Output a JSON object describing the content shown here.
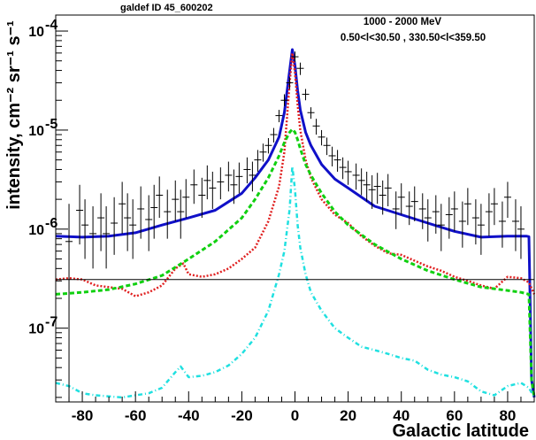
{
  "chart_data": {
    "type": "line",
    "title": "galdef ID 45_600202",
    "annotations": [
      "1000 -  2000 MeV",
      "0.50<l<30.50 , 330.50<l<359.50"
    ],
    "xlabel": "Galactic latitude",
    "ylabel": "intensity, cm⁻² sr⁻¹ s⁻¹",
    "xlim": [
      -90,
      90
    ],
    "ylim": [
      1.8e-08,
      0.000145
    ],
    "yscale": "log",
    "x_ticks": [
      "-80",
      "-60",
      "-40",
      "-20",
      "0",
      "20",
      "40",
      "60",
      "80"
    ],
    "y_ticks": [
      {
        "mantissa": "10",
        "exp": "-7",
        "value": 1e-07
      },
      {
        "mantissa": "10",
        "exp": "-6",
        "value": 1e-06
      },
      {
        "mantissa": "10",
        "exp": "-5",
        "value": 1e-05
      },
      {
        "mantissa": "10",
        "exp": "-4",
        "value": 0.0001
      }
    ],
    "grid": false,
    "series": [
      {
        "style": "solid",
        "color": "#1010c8",
        "x": [
          -90,
          -80,
          -70,
          -60,
          -50,
          -40,
          -30,
          -20,
          -15,
          -10,
          -6,
          -4,
          -2,
          -1,
          0,
          1,
          2,
          4,
          6,
          10,
          15,
          20,
          30,
          40,
          50,
          60,
          70,
          80,
          87,
          88,
          89,
          90
        ],
        "y": [
          8.5e-07,
          8.3e-07,
          8.5e-07,
          9.2e-07,
          1.1e-06,
          1.3e-06,
          1.55e-06,
          2.3e-06,
          3.3e-06,
          5e-06,
          8.5e-06,
          1.5e-05,
          4e-05,
          6.5e-05,
          4.5e-05,
          2.5e-05,
          1.6e-05,
          9.5e-06,
          7e-06,
          4.5e-06,
          3.2e-06,
          2.6e-06,
          1.7e-06,
          1.4e-06,
          1.15e-06,
          9.5e-07,
          8.3e-07,
          8.5e-07,
          8.5e-07,
          8.4e-07,
          3e-08,
          2e-08
        ]
      },
      {
        "style": "dotted",
        "color": "#e02020",
        "x": [
          -90,
          -85,
          -80,
          -75,
          -70,
          -65,
          -60,
          -55,
          -50,
          -45,
          -42,
          -40,
          -35,
          -30,
          -25,
          -20,
          -15,
          -10,
          -6,
          -4,
          -2,
          -1,
          0,
          1,
          2,
          4,
          6,
          10,
          15,
          20,
          25,
          30,
          35,
          40,
          45,
          50,
          55,
          60,
          65,
          70,
          75,
          80,
          85,
          88,
          90
        ],
        "y": [
          3.1e-07,
          3.2e-07,
          3.1e-07,
          2.7e-07,
          2.6e-07,
          2.5e-07,
          2.1e-07,
          2.3e-07,
          2.7e-07,
          4e-07,
          4.5e-07,
          3.5e-07,
          3.3e-07,
          3.5e-07,
          4e-07,
          5e-07,
          6.5e-07,
          1.2e-06,
          2.7e-06,
          6e-06,
          3e-05,
          6e-05,
          3.8e-05,
          1.8e-05,
          1e-05,
          5e-06,
          3.3e-06,
          2e-06,
          1.4e-06,
          1.15e-06,
          8.5e-07,
          6.8e-07,
          5.7e-07,
          5.5e-07,
          4.8e-07,
          4.2e-07,
          3.8e-07,
          3.3e-07,
          3e-07,
          2.7e-07,
          2.5e-07,
          3.3e-07,
          3.2e-07,
          2.9e-07,
          2.2e-07
        ]
      },
      {
        "style": "dashed",
        "color": "#10d010",
        "x": [
          -90,
          -80,
          -70,
          -60,
          -50,
          -40,
          -30,
          -20,
          -15,
          -10,
          -6,
          -4,
          -2,
          -1,
          0,
          1,
          2,
          4,
          6,
          10,
          15,
          20,
          30,
          40,
          50,
          60,
          70,
          80,
          85,
          88,
          89,
          90
        ],
        "y": [
          2.2e-07,
          2.3e-07,
          2.45e-07,
          2.8e-07,
          3.4e-07,
          5e-07,
          7.5e-07,
          1.3e-06,
          2e-06,
          3.3e-06,
          5.5e-06,
          7.5e-06,
          9.5e-06,
          1.02e-05,
          9.5e-06,
          8e-06,
          6.5e-06,
          4.5e-06,
          3.5e-06,
          2.3e-06,
          1.5e-06,
          1.1e-06,
          7e-07,
          5e-07,
          3.8e-07,
          3.1e-07,
          2.6e-07,
          2.4e-07,
          2.3e-07,
          2.2e-07,
          3e-08,
          2e-08
        ]
      },
      {
        "style": "dashdot",
        "color": "#20e0e0",
        "x": [
          -90,
          -85,
          -80,
          -75,
          -70,
          -65,
          -60,
          -55,
          -50,
          -45,
          -43,
          -40,
          -35,
          -30,
          -25,
          -20,
          -15,
          -10,
          -6,
          -4,
          -2,
          -1,
          0,
          1,
          2,
          4,
          6,
          10,
          15,
          20,
          25,
          30,
          35,
          40,
          45,
          50,
          55,
          60,
          65,
          70,
          75,
          80,
          85,
          88,
          90
        ],
        "y": [
          2.8e-08,
          2.6e-08,
          2.2e-08,
          2.1e-08,
          2.05e-08,
          2e-08,
          2.1e-08,
          2.2e-08,
          2.5e-08,
          3.6e-08,
          4.1e-08,
          3.2e-08,
          3.3e-08,
          3.6e-08,
          4.2e-08,
          5.5e-08,
          8e-08,
          1.5e-07,
          3.5e-07,
          6e-07,
          1.6e-06,
          4.3e-06,
          2.5e-06,
          1.1e-06,
          6.5e-07,
          3.5e-07,
          2.3e-07,
          1.5e-07,
          1e-07,
          8e-08,
          6.5e-08,
          6e-08,
          5.5e-08,
          5e-08,
          4.7e-08,
          3.8e-08,
          3.4e-08,
          3.2e-08,
          2.9e-08,
          2.3e-08,
          2.1e-08,
          2.6e-08,
          2.8e-08,
          2.5e-08,
          2e-08
        ]
      },
      {
        "style": "thin",
        "color": "#000000",
        "x": [
          -90,
          90
        ],
        "y": [
          3.1e-07,
          3.1e-07
        ]
      }
    ],
    "points": {
      "x": [
        -85,
        -81,
        -79,
        -76,
        -73,
        -71,
        -68,
        -65,
        -63,
        -61,
        -58,
        -55,
        -53,
        -51,
        -48,
        -45,
        -43,
        -41,
        -38,
        -35,
        -33,
        -31,
        -28,
        -25,
        -23,
        -21,
        -18,
        -16,
        -14,
        -12,
        -10,
        -8,
        -6,
        -4,
        -2,
        0,
        2,
        4,
        6,
        8,
        10,
        12,
        14,
        16,
        18,
        20,
        23,
        25,
        27,
        29,
        31,
        33,
        35,
        38,
        40,
        43,
        45,
        48,
        50,
        53,
        55,
        58,
        60,
        63,
        65,
        68,
        70,
        73,
        75,
        78,
        80,
        83,
        85
      ],
      "y": [
        7.5e-07,
        1.55e-06,
        1.1e-06,
        9e-07,
        1.3e-06,
        9e-07,
        1.15e-06,
        1.8e-06,
        1.3e-06,
        1.1e-06,
        1.6e-06,
        1.25e-06,
        1.65e-06,
        2.2e-06,
        1.5e-06,
        2e-06,
        1.5e-06,
        2.1e-06,
        2.8e-06,
        2.2e-06,
        3.1e-06,
        2.6e-06,
        3e-06,
        3.5e-06,
        2.8e-06,
        3.4e-06,
        4e-06,
        3.5e-06,
        5e-06,
        6e-06,
        7e-06,
        9e-06,
        1.4e-05,
        2e-05,
        3e-05,
        5.5e-05,
        4.2e-05,
        2.3e-05,
        1.5e-05,
        1.1e-05,
        8.5e-06,
        7e-06,
        5.5e-06,
        5e-06,
        4.2e-06,
        3.8e-06,
        3.5e-06,
        3.1e-06,
        2.8e-06,
        2.5e-06,
        2.7e-06,
        2.2e-06,
        2.6e-06,
        1.6e-06,
        2.1e-06,
        1.7e-06,
        1.9e-06,
        1.6e-06,
        1.3e-06,
        1.5e-06,
        1.1e-06,
        1.4e-06,
        1.6e-06,
        1.2e-06,
        1.8e-06,
        1.3e-06,
        1.1e-06,
        1.5e-06,
        1.8e-06,
        1.2e-06,
        2.1e-06,
        1.2e-06,
        1e-06
      ],
      "ylow": [
        1.8e-08,
        7e-07,
        5e-07,
        4e-07,
        6e-07,
        4e-07,
        5.5e-07,
        9e-07,
        6e-07,
        5e-07,
        8e-07,
        6e-07,
        8e-07,
        1.3e-06,
        8e-07,
        1.2e-06,
        8e-07,
        1.3e-06,
        1.8e-06,
        1.3e-06,
        2e-06,
        1.6e-06,
        2e-06,
        2.4e-06,
        1.8e-06,
        2.3e-06,
        2.9e-06,
        2.4e-06,
        3.8e-06,
        4.8e-06,
        5.8e-06,
        7.5e-06,
        1.2e-05,
        1.75e-05,
        2.6e-05,
        4.9e-05,
        3.6e-05,
        2e-05,
        1.3e-05,
        9e-06,
        7e-06,
        5.6e-06,
        4.3e-06,
        3.8e-06,
        3.2e-06,
        2.8e-06,
        2.5e-06,
        2.2e-06,
        1.9e-06,
        1.6e-06,
        1.8e-06,
        1.4e-06,
        1.7e-06,
        1e-06,
        1.4e-06,
        1.1e-06,
        1.2e-06,
        1e-06,
        7.5e-07,
        9e-07,
        6e-07,
        8e-07,
        9.5e-07,
        6.5e-07,
        1.1e-06,
        7e-07,
        5.5e-07,
        8.5e-07,
        1.1e-06,
        6.5e-07,
        1.3e-06,
        6e-07,
        5e-07
      ],
      "yhigh": [
        1.8e-06,
        2.8e-06,
        2e-06,
        1.7e-06,
        2.3e-06,
        1.7e-06,
        2.1e-06,
        3e-06,
        2.3e-06,
        2e-06,
        2.7e-06,
        2.2e-06,
        2.8e-06,
        3.4e-06,
        2.5e-06,
        3.1e-06,
        2.5e-06,
        3.2e-06,
        4e-06,
        3.3e-06,
        4.4e-06,
        3.8e-06,
        4.2e-06,
        4.8e-06,
        4e-06,
        4.7e-06,
        5.3e-06,
        4.8e-06,
        6.3e-06,
        7.3e-06,
        8.3e-06,
        1.05e-05,
        1.6e-05,
        2.3e-05,
        3.4e-05,
        6.2e-05,
        4.8e-05,
        2.6e-05,
        1.7e-05,
        1.3e-05,
        1e-05,
        8.4e-06,
        6.8e-06,
        6.3e-06,
        5.3e-06,
        4.9e-06,
        4.6e-06,
        4.1e-06,
        3.8e-06,
        3.5e-06,
        3.7e-06,
        3.1e-06,
        3.6e-06,
        2.4e-06,
        2.9e-06,
        2.4e-06,
        2.7e-06,
        2.3e-06,
        2e-06,
        2.2e-06,
        1.8e-06,
        2.1e-06,
        2.4e-06,
        1.9e-06,
        2.6e-06,
        2e-06,
        1.8e-06,
        2.3e-06,
        2.6e-06,
        1.9e-06,
        3e-06,
        2e-06,
        1.7e-06
      ]
    }
  }
}
